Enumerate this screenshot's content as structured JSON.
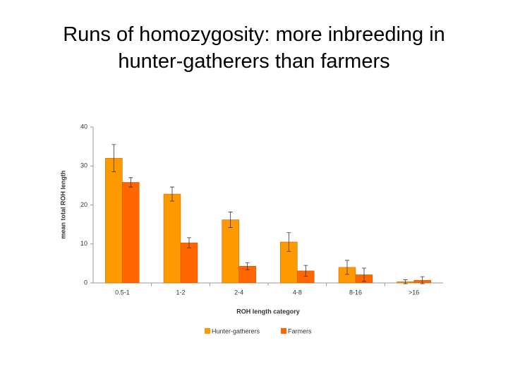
{
  "chart_data": {
    "type": "bar",
    "title": "Runs of homozygosity: more inbreeding in hunter-gatherers than farmers",
    "x_label": "ROH length category",
    "y_label": "mean total ROH length",
    "categories": [
      "0.5-1",
      "1-2",
      "2-4",
      "4-8",
      "8-16",
      ">16"
    ],
    "series": [
      {
        "name": "Hunter-gatherers",
        "color": "#ff9900",
        "values": [
          32,
          22.8,
          16.2,
          10.5,
          4,
          0.3
        ],
        "errors": [
          3.5,
          1.8,
          2,
          2.4,
          1.8,
          0.5
        ]
      },
      {
        "name": "Farmers",
        "color": "#ff6600",
        "values": [
          25.8,
          10.3,
          4.3,
          3.1,
          2.1,
          0.7
        ],
        "errors": [
          1.2,
          1.3,
          0.9,
          1.4,
          1.7,
          0.9
        ]
      }
    ],
    "ylim": [
      0,
      40
    ],
    "yticks": [
      0,
      10,
      20,
      30,
      40
    ],
    "legend": "bottom"
  }
}
